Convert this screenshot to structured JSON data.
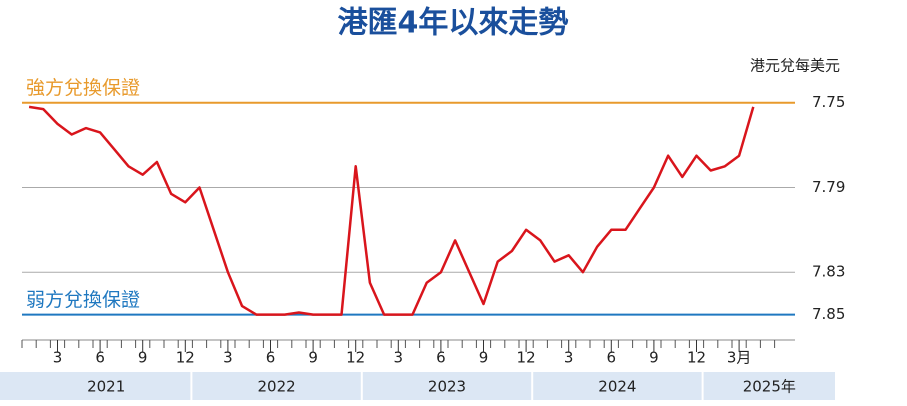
{
  "chart_data": {
    "type": "line",
    "title": "港匯4年以來走勢",
    "unit_label": "港元兌每美元",
    "color": "#d9151c",
    "x": [
      "2021-01",
      "2021-02",
      "2021-03",
      "2021-04",
      "2021-05",
      "2021-06",
      "2021-07",
      "2021-08",
      "2021-09",
      "2021-10",
      "2021-11",
      "2021-12",
      "2022-01",
      "2022-02",
      "2022-03",
      "2022-04",
      "2022-05",
      "2022-06",
      "2022-07",
      "2022-08",
      "2022-09",
      "2022-10",
      "2022-11",
      "2022-12",
      "2023-01",
      "2023-02",
      "2023-03",
      "2023-04",
      "2023-05",
      "2023-06",
      "2023-07",
      "2023-08",
      "2023-09",
      "2023-10",
      "2023-11",
      "2023-12",
      "2024-01",
      "2024-02",
      "2024-03",
      "2024-04",
      "2024-05",
      "2024-06",
      "2024-07",
      "2024-08",
      "2024-09",
      "2024-10",
      "2024-11",
      "2024-12",
      "2025-01",
      "2025-02",
      "2025-03",
      "2025-04"
    ],
    "values": [
      7.752,
      7.753,
      7.76,
      7.765,
      7.762,
      7.764,
      7.772,
      7.78,
      7.784,
      7.778,
      7.793,
      7.797,
      7.79,
      7.81,
      7.83,
      7.846,
      7.85,
      7.85,
      7.85,
      7.849,
      7.85,
      7.85,
      7.85,
      7.78,
      7.835,
      7.85,
      7.85,
      7.85,
      7.835,
      7.83,
      7.815,
      7.83,
      7.845,
      7.825,
      7.82,
      7.81,
      7.815,
      7.825,
      7.822,
      7.83,
      7.818,
      7.81,
      7.81,
      7.8,
      7.79,
      7.775,
      7.785,
      7.775,
      7.782,
      7.78,
      7.775,
      7.752
    ],
    "ylim": [
      7.862,
      7.744
    ],
    "yticks": [
      7.75,
      7.79,
      7.83,
      7.85
    ],
    "grid": true,
    "xticks": [
      {
        "value": "2021-03",
        "label": "3"
      },
      {
        "value": "2021-06",
        "label": "6"
      },
      {
        "value": "2021-09",
        "label": "9"
      },
      {
        "value": "2021-12",
        "label": "12"
      },
      {
        "value": "2022-03",
        "label": "3"
      },
      {
        "value": "2022-06",
        "label": "6"
      },
      {
        "value": "2022-09",
        "label": "9"
      },
      {
        "value": "2022-12",
        "label": "12"
      },
      {
        "value": "2023-03",
        "label": "3"
      },
      {
        "value": "2023-06",
        "label": "6"
      },
      {
        "value": "2023-09",
        "label": "9"
      },
      {
        "value": "2023-12",
        "label": "12"
      },
      {
        "value": "2024-03",
        "label": "3"
      },
      {
        "value": "2024-06",
        "label": "6"
      },
      {
        "value": "2024-09",
        "label": "9"
      },
      {
        "value": "2024-12",
        "label": "12"
      },
      {
        "value": "2025-03",
        "label": "3月"
      }
    ],
    "years": [
      {
        "value": 2021,
        "label": "2021"
      },
      {
        "value": 2022,
        "label": "2022"
      },
      {
        "value": 2023,
        "label": "2023"
      },
      {
        "value": 2024,
        "label": "2024"
      },
      {
        "value": 2025,
        "label": "2025年"
      }
    ],
    "annotations": [
      {
        "text": "強方兌換保證",
        "value": 7.75,
        "color": "#e89a2c"
      },
      {
        "text": "弱方兌換保證",
        "value": 7.85,
        "color": "#1f78c0"
      }
    ]
  }
}
